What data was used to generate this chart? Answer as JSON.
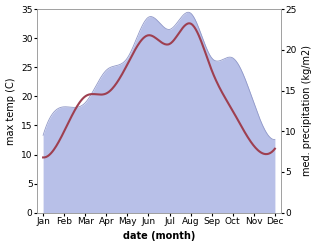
{
  "months": [
    "Jan",
    "Feb",
    "Mar",
    "Apr",
    "May",
    "Jun",
    "Jul",
    "Aug",
    "Sep",
    "Oct",
    "Nov",
    "Dec"
  ],
  "month_x": [
    0,
    1,
    2,
    3,
    4,
    5,
    6,
    7,
    8,
    9,
    10,
    11
  ],
  "temp": [
    9.5,
    14.0,
    20.0,
    20.5,
    25.5,
    30.5,
    29.0,
    32.5,
    24.5,
    17.5,
    11.5,
    11.0
  ],
  "precip": [
    9.5,
    13.0,
    13.5,
    17.5,
    19.0,
    24.0,
    22.5,
    24.5,
    19.0,
    19.0,
    13.5,
    9.0
  ],
  "temp_color": "#9e3f50",
  "precip_fill_color": "#b8c0e8",
  "precip_line_color": "#9098c8",
  "left_ylim": [
    0,
    35
  ],
  "right_ylim": [
    0,
    25
  ],
  "left_yticks": [
    0,
    5,
    10,
    15,
    20,
    25,
    30,
    35
  ],
  "right_yticks": [
    0,
    5,
    10,
    15,
    20,
    25
  ],
  "xlabel": "date (month)",
  "ylabel_left": "max temp (C)",
  "ylabel_right": "med. precipitation (kg/m2)",
  "bg_color": "#ffffff",
  "label_fontsize": 7,
  "tick_fontsize": 6.5,
  "linewidth_temp": 1.5
}
